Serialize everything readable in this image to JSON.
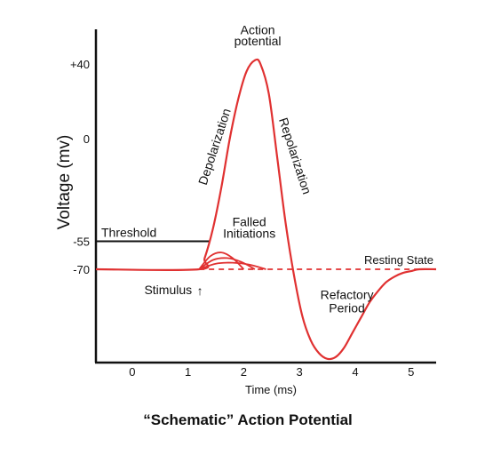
{
  "chart_data": {
    "type": "line",
    "title": "“Schematic” Action Potential",
    "xlabel": "Time (ms)",
    "ylabel": "Voltage (mv)",
    "xlim": [
      -0.65,
      5.45
    ],
    "ylim": [
      -120,
      60
    ],
    "x_ticks": [
      {
        "value": 0,
        "label": "0"
      },
      {
        "value": 1,
        "label": "1"
      },
      {
        "value": 2,
        "label": "2"
      },
      {
        "value": 3,
        "label": "3"
      },
      {
        "value": 4,
        "label": "4"
      },
      {
        "value": 5,
        "label": "5"
      }
    ],
    "y_ticks": [
      {
        "value": 40,
        "label": "+40"
      },
      {
        "value": 0,
        "label": "0"
      },
      {
        "value": -55,
        "label": "-55"
      },
      {
        "value": -70,
        "label": "-70"
      }
    ],
    "grid": false,
    "series": [
      {
        "color": "#e03131",
        "x": [
          -0.65,
          1.2,
          1.3,
          1.45,
          1.6,
          1.75,
          1.9,
          2.05,
          2.2,
          2.3,
          2.45,
          2.6,
          2.75,
          2.9,
          3.05,
          3.2,
          3.35,
          3.5,
          3.65,
          3.8,
          3.95,
          4.1,
          4.25,
          4.4,
          4.55,
          4.7,
          4.85,
          5.0,
          5.15,
          5.45
        ],
        "y": [
          -70,
          -70,
          -64,
          -48,
          -26,
          0,
          21,
          36,
          42,
          40,
          24,
          -10,
          -45,
          -73,
          -95,
          -108,
          -115,
          -118,
          -117,
          -112,
          -104,
          -96,
          -88,
          -82,
          -77,
          -74,
          -72,
          -71,
          -70,
          -70
        ]
      }
    ],
    "failed_initiations": [
      {
        "x": [
          1.2,
          1.4,
          1.6,
          1.8,
          2.0
        ],
        "y": [
          -70,
          -63,
          -61,
          -64,
          -70
        ]
      },
      {
        "x": [
          1.2,
          1.45,
          1.7,
          1.95,
          2.2
        ],
        "y": [
          -70,
          -65,
          -64,
          -66,
          -70
        ]
      },
      {
        "x": [
          1.2,
          1.5,
          1.8,
          2.1,
          2.4
        ],
        "y": [
          -70,
          -67,
          -66.5,
          -67.5,
          -70
        ]
      }
    ],
    "threshold": {
      "value": -55,
      "x_end": 1.4,
      "label": "Threshold"
    },
    "resting": {
      "value": -70,
      "x_start": 1.2,
      "x_end": 5.45,
      "label": "Resting State"
    },
    "stimulus": {
      "x": 1.2,
      "label": "Stimulus",
      "arrow": "↑"
    },
    "annotations": [
      {
        "text": "Action",
        "x": 2.25,
        "y": 56
      },
      {
        "text": "potential",
        "x": 2.25,
        "y": 50
      },
      {
        "text": "Depolarization",
        "x": 1.55,
        "y": -5,
        "rotate": -72
      },
      {
        "text": "Repolarization",
        "x": 2.85,
        "y": -10,
        "rotate": 72
      },
      {
        "text": "Falled",
        "x": 2.1,
        "y": -47
      },
      {
        "text": "Initiations",
        "x": 2.1,
        "y": -53
      },
      {
        "text": "Refactory",
        "x": 3.85,
        "y": -86
      },
      {
        "text": "Period",
        "x": 3.85,
        "y": -93
      }
    ]
  }
}
